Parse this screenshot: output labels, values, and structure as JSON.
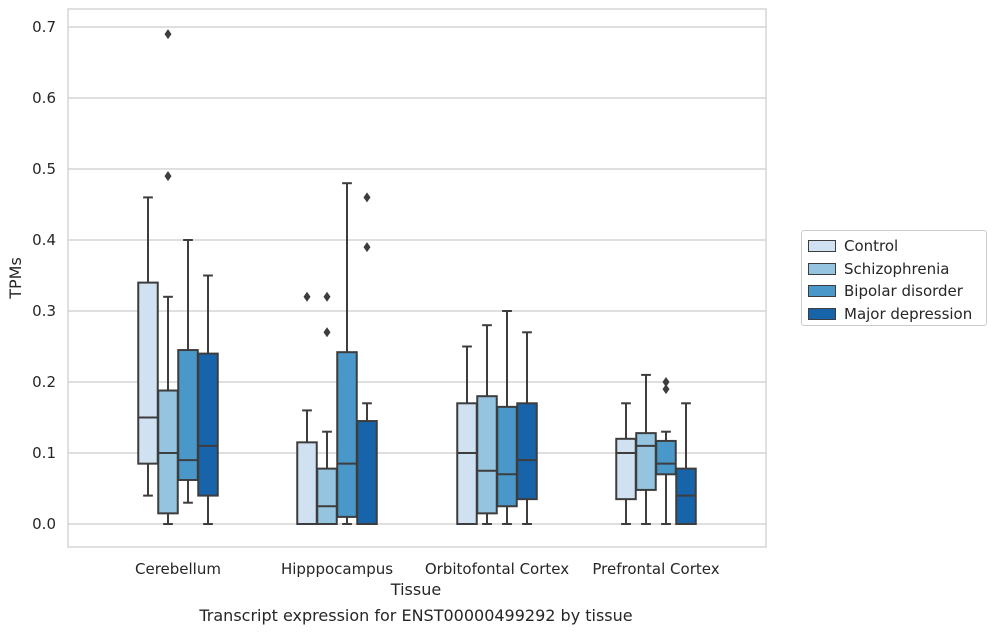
{
  "chart_data": {
    "type": "box",
    "xlabel": "Tissue",
    "ylabel": "TPMs",
    "ylim": [
      -0.034,
      0.725
    ],
    "yticks": [
      "0.0",
      "0.1",
      "0.2",
      "0.3",
      "0.4",
      "0.5",
      "0.6",
      "0.7"
    ],
    "ytick_values": [
      0.0,
      0.1,
      0.2,
      0.3,
      0.4,
      0.5,
      0.6,
      0.7
    ],
    "grid": true,
    "legend_position": "right",
    "categories": [
      "Cerebellum",
      "Hipppocampus",
      "Orbitofontal Cortex",
      "Prefrontal Cortex"
    ],
    "series": [
      {
        "name": "Control",
        "color": "#d0e1f2",
        "boxes": [
          {
            "whisker_low": 0.04,
            "q1": 0.085,
            "median": 0.15,
            "q3": 0.34,
            "whisker_high": 0.46,
            "outliers": []
          },
          {
            "whisker_low": 0.0,
            "q1": 0.0,
            "median": 0.0,
            "q3": 0.115,
            "whisker_high": 0.16,
            "outliers": [
              0.32
            ]
          },
          {
            "whisker_low": 0.0,
            "q1": 0.0,
            "median": 0.1,
            "q3": 0.17,
            "whisker_high": 0.25,
            "outliers": []
          },
          {
            "whisker_low": 0.0,
            "q1": 0.035,
            "median": 0.1,
            "q3": 0.12,
            "whisker_high": 0.17,
            "outliers": []
          }
        ]
      },
      {
        "name": "Schizophrenia",
        "color": "#94c4df",
        "boxes": [
          {
            "whisker_low": 0.0,
            "q1": 0.015,
            "median": 0.1,
            "q3": 0.188,
            "whisker_high": 0.32,
            "outliers": [
              0.49,
              0.69
            ]
          },
          {
            "whisker_low": 0.0,
            "q1": 0.0,
            "median": 0.025,
            "q3": 0.078,
            "whisker_high": 0.13,
            "outliers": [
              0.27,
              0.32
            ]
          },
          {
            "whisker_low": 0.0,
            "q1": 0.015,
            "median": 0.075,
            "q3": 0.18,
            "whisker_high": 0.28,
            "outliers": []
          },
          {
            "whisker_low": 0.0,
            "q1": 0.048,
            "median": 0.11,
            "q3": 0.128,
            "whisker_high": 0.21,
            "outliers": []
          }
        ]
      },
      {
        "name": "Bipolar disorder",
        "color": "#4a98c9",
        "boxes": [
          {
            "whisker_low": 0.03,
            "q1": 0.062,
            "median": 0.09,
            "q3": 0.245,
            "whisker_high": 0.4,
            "outliers": []
          },
          {
            "whisker_low": 0.0,
            "q1": 0.01,
            "median": 0.085,
            "q3": 0.242,
            "whisker_high": 0.48,
            "outliers": []
          },
          {
            "whisker_low": 0.0,
            "q1": 0.025,
            "median": 0.07,
            "q3": 0.165,
            "whisker_high": 0.3,
            "outliers": []
          },
          {
            "whisker_low": 0.0,
            "q1": 0.07,
            "median": 0.085,
            "q3": 0.117,
            "whisker_high": 0.13,
            "outliers": [
              0.19,
              0.2
            ]
          }
        ]
      },
      {
        "name": "Major depression",
        "color": "#1764ab",
        "boxes": [
          {
            "whisker_low": 0.0,
            "q1": 0.04,
            "median": 0.11,
            "q3": 0.24,
            "whisker_high": 0.35,
            "outliers": []
          },
          {
            "whisker_low": 0.0,
            "q1": 0.0,
            "median": 0.0,
            "q3": 0.145,
            "whisker_high": 0.17,
            "outliers": [
              0.39,
              0.46
            ]
          },
          {
            "whisker_low": 0.0,
            "q1": 0.035,
            "median": 0.09,
            "q3": 0.17,
            "whisker_high": 0.27,
            "outliers": []
          },
          {
            "whisker_low": 0.0,
            "q1": 0.0,
            "median": 0.04,
            "q3": 0.078,
            "whisker_high": 0.17,
            "outliers": []
          }
        ]
      }
    ]
  },
  "caption": "Transcript expression for ENST00000499292 by tissue"
}
